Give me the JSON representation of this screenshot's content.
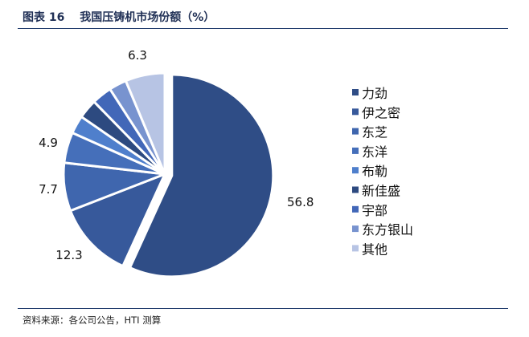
{
  "header": {
    "title": "图表 16　 我国压铸机市场份额（%）"
  },
  "footer": {
    "source": "资料来源：各公司公告，HTI 测算"
  },
  "chart_data": {
    "type": "pie",
    "categories": [
      "力劲",
      "伊之密",
      "东芝",
      "东洋",
      "布勒",
      "新佳盛",
      "宇部",
      "东方银山",
      "其他"
    ],
    "values": [
      56.8,
      12.3,
      7.7,
      4.9,
      2.9,
      3.1,
      3.2,
      2.8,
      6.3
    ],
    "data_labels": [
      "56.8",
      "12.3",
      "7.7",
      "4.9",
      "",
      "",
      "",
      "",
      "6.3"
    ],
    "colors": [
      "#2f4d86",
      "#37599b",
      "#3f66ae",
      "#456fba",
      "#4f7fcc",
      "#2d4a80",
      "#4267b8",
      "#7893cf",
      "#b7c4e4"
    ],
    "exploded": [
      "力劲"
    ],
    "legend_position": "right"
  }
}
